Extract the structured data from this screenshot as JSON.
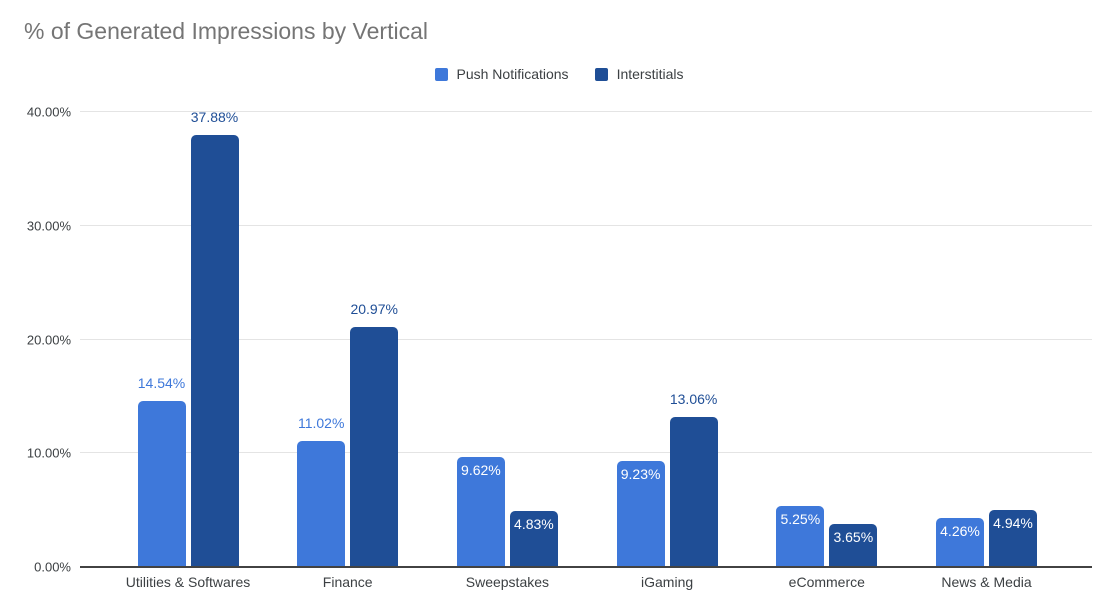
{
  "chart_data": {
    "type": "bar",
    "title": "% of Generated Impressions by Vertical",
    "categories": [
      "Utilities & Softwares",
      "Finance",
      "Sweepstakes",
      "iGaming",
      "eCommerce",
      "News & Media"
    ],
    "series": [
      {
        "name": "Push Notifications",
        "color": "#3e78da",
        "values": [
          14.54,
          11.02,
          9.62,
          9.23,
          5.25,
          4.26
        ]
      },
      {
        "name": "Interstitials",
        "color": "#1f4e96",
        "values": [
          37.88,
          20.97,
          4.83,
          13.06,
          3.65,
          4.94
        ]
      }
    ],
    "data_labels": [
      [
        "14.54%",
        "11.02%",
        "9.62%",
        "9.23%",
        "5.25%",
        "4.26%"
      ],
      [
        "37.88%",
        "20.97%",
        "4.83%",
        "13.06%",
        "3.65%",
        "4.94%"
      ]
    ],
    "xlabel": "",
    "ylabel": "",
    "ylim": [
      0,
      40
    ],
    "y_ticks": [
      {
        "value": 40,
        "label": "40.00%"
      },
      {
        "value": 30,
        "label": "30.00%"
      },
      {
        "value": 20,
        "label": "20.00%"
      },
      {
        "value": 10,
        "label": "10.00%"
      },
      {
        "value": 0,
        "label": "0.00%"
      }
    ],
    "grid": true,
    "legend_position": "top",
    "styles": {
      "title_color": "#757575",
      "axis_text_color": "#3c4043",
      "gridline_color": "#e4e4e4",
      "baseline_color": "#424242",
      "inside_label_color": "#ffffff",
      "background": "#ffffff"
    }
  }
}
